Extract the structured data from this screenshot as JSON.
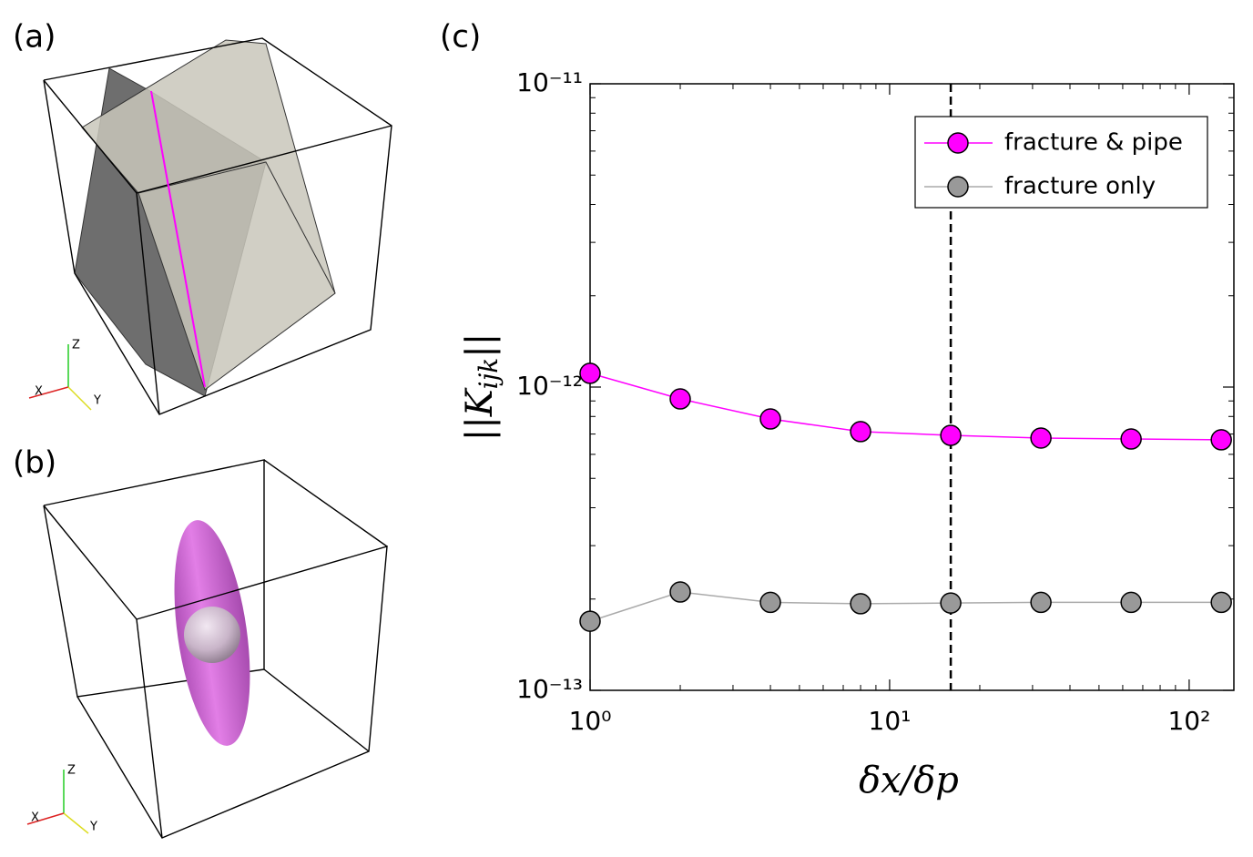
{
  "panels": {
    "a": {
      "label": "(a)",
      "triad": {
        "x": "X",
        "y": "Y",
        "z": "Z"
      }
    },
    "b": {
      "label": "(b)",
      "triad": {
        "x": "X",
        "y": "Y",
        "z": "Z"
      }
    },
    "c": {
      "label": "(c)"
    }
  },
  "chart_data": {
    "type": "line",
    "xlabel": "δx/δp",
    "ylabel": {
      "main": "||K",
      "sub": "ijk",
      "end": "||"
    },
    "x": [
      1,
      2,
      4,
      8,
      16,
      32,
      64,
      128
    ],
    "series": [
      {
        "name": "fracture & pipe",
        "color": "#ff00ff",
        "marker_color": "#ff00ff",
        "values": [
          1.11e-12,
          9.14e-13,
          7.85e-13,
          7.13e-13,
          6.93e-13,
          6.79e-13,
          6.74e-13,
          6.7e-13
        ]
      },
      {
        "name": "fracture only",
        "color": "#aaaaaa",
        "marker_color": "#999999",
        "values": [
          1.69e-13,
          2.11e-13,
          1.95e-13,
          1.93e-13,
          1.94e-13,
          1.95e-13,
          1.95e-13,
          1.95e-13
        ]
      }
    ],
    "xscale": "log",
    "yscale": "log",
    "xlim": [
      1,
      141
    ],
    "ylim": [
      1e-13,
      1e-11
    ],
    "xticks": [
      {
        "value": 1,
        "label": "10⁰"
      },
      {
        "value": 10,
        "label": "10¹"
      },
      {
        "value": 100,
        "label": "10²"
      }
    ],
    "yticks": [
      {
        "value": 1e-13,
        "label": "10⁻¹³"
      },
      {
        "value": 1e-12,
        "label": "10⁻¹²"
      },
      {
        "value": 1e-11,
        "label": "10⁻¹¹"
      }
    ],
    "xminorticks": [
      2,
      3,
      4,
      5,
      6,
      7,
      8,
      9,
      20,
      30,
      40,
      50,
      60,
      70,
      80,
      90
    ],
    "yminorticks": [
      2e-13,
      3e-13,
      4e-13,
      5e-13,
      6e-13,
      7e-13,
      8e-13,
      9e-13,
      2e-12,
      3e-12,
      4e-12,
      5e-12,
      6e-12,
      7e-12,
      8e-12,
      9e-12
    ],
    "vline": 16,
    "legend": "upper right"
  }
}
